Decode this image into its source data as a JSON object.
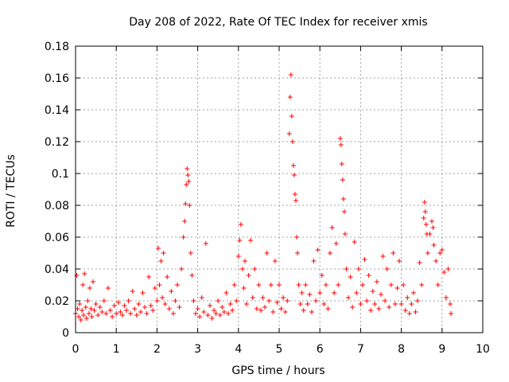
{
  "chart_data": {
    "type": "scatter",
    "title": "Day 208 of 2022, Rate Of TEC Index for receiver xmis",
    "xlabel": "GPS time / hours",
    "ylabel": "ROTI / TECUs",
    "xlim": [
      0,
      10
    ],
    "ylim": [
      0,
      0.18
    ],
    "xticks": [
      "0",
      "1",
      "2",
      "3",
      "4",
      "5",
      "6",
      "7",
      "8",
      "9",
      "10"
    ],
    "yticks": [
      "0",
      "0.02",
      "0.04",
      "0.06",
      "0.08",
      "0.1",
      "0.12",
      "0.14",
      "0.16",
      "0.18"
    ],
    "grid": true,
    "marker": "plus",
    "color": "#ff0000",
    "series": [
      {
        "points": [
          [
            0.0,
            0.012
          ],
          [
            0.03,
            0.036
          ],
          [
            0.05,
            0.015
          ],
          [
            0.08,
            0.01
          ],
          [
            0.1,
            0.018
          ],
          [
            0.13,
            0.008
          ],
          [
            0.16,
            0.014
          ],
          [
            0.18,
            0.03
          ],
          [
            0.2,
            0.011
          ],
          [
            0.22,
            0.037
          ],
          [
            0.25,
            0.016
          ],
          [
            0.27,
            0.009
          ],
          [
            0.3,
            0.02
          ],
          [
            0.33,
            0.012
          ],
          [
            0.35,
            0.028
          ],
          [
            0.38,
            0.015
          ],
          [
            0.4,
            0.01
          ],
          [
            0.43,
            0.032
          ],
          [
            0.46,
            0.014
          ],
          [
            0.5,
            0.018
          ],
          [
            0.55,
            0.011
          ],
          [
            0.6,
            0.016
          ],
          [
            0.65,
            0.013
          ],
          [
            0.7,
            0.02
          ],
          [
            0.75,
            0.012
          ],
          [
            0.8,
            0.028
          ],
          [
            0.85,
            0.014
          ],
          [
            0.9,
            0.01
          ],
          [
            0.95,
            0.017
          ],
          [
            1.0,
            0.012
          ],
          [
            1.05,
            0.019
          ],
          [
            1.1,
            0.013
          ],
          [
            1.15,
            0.011
          ],
          [
            1.2,
            0.017
          ],
          [
            1.25,
            0.014
          ],
          [
            1.3,
            0.02
          ],
          [
            1.35,
            0.012
          ],
          [
            1.4,
            0.026
          ],
          [
            1.45,
            0.015
          ],
          [
            1.5,
            0.011
          ],
          [
            1.55,
            0.018
          ],
          [
            1.6,
            0.013
          ],
          [
            1.65,
            0.025
          ],
          [
            1.7,
            0.016
          ],
          [
            1.75,
            0.012
          ],
          [
            1.8,
            0.035
          ],
          [
            1.85,
            0.017
          ],
          [
            1.9,
            0.014
          ],
          [
            1.95,
            0.028
          ],
          [
            2.0,
            0.02
          ],
          [
            2.03,
            0.053
          ],
          [
            2.06,
            0.03
          ],
          [
            2.1,
            0.045
          ],
          [
            2.13,
            0.022
          ],
          [
            2.16,
            0.05
          ],
          [
            2.2,
            0.018
          ],
          [
            2.25,
            0.035
          ],
          [
            2.3,
            0.015
          ],
          [
            2.35,
            0.026
          ],
          [
            2.4,
            0.012
          ],
          [
            2.45,
            0.02
          ],
          [
            2.5,
            0.03
          ],
          [
            2.55,
            0.016
          ],
          [
            2.6,
            0.04
          ],
          [
            2.65,
            0.06
          ],
          [
            2.68,
            0.07
          ],
          [
            2.7,
            0.081
          ],
          [
            2.72,
            0.093
          ],
          [
            2.74,
            0.103
          ],
          [
            2.76,
            0.099
          ],
          [
            2.78,
            0.095
          ],
          [
            2.8,
            0.08
          ],
          [
            2.83,
            0.05
          ],
          [
            2.86,
            0.036
          ],
          [
            2.9,
            0.02
          ],
          [
            2.95,
            0.012
          ],
          [
            3.0,
            0.015
          ],
          [
            3.05,
            0.01
          ],
          [
            3.1,
            0.022
          ],
          [
            3.15,
            0.013
          ],
          [
            3.2,
            0.056
          ],
          [
            3.25,
            0.011
          ],
          [
            3.3,
            0.017
          ],
          [
            3.35,
            0.009
          ],
          [
            3.4,
            0.014
          ],
          [
            3.45,
            0.012
          ],
          [
            3.5,
            0.02
          ],
          [
            3.55,
            0.011
          ],
          [
            3.6,
            0.016
          ],
          [
            3.65,
            0.013
          ],
          [
            3.7,
            0.025
          ],
          [
            3.75,
            0.012
          ],
          [
            3.8,
            0.018
          ],
          [
            3.85,
            0.014
          ],
          [
            3.9,
            0.03
          ],
          [
            3.95,
            0.02
          ],
          [
            4.0,
            0.048
          ],
          [
            4.03,
            0.058
          ],
          [
            4.06,
            0.068
          ],
          [
            4.1,
            0.04
          ],
          [
            4.13,
            0.028
          ],
          [
            4.16,
            0.045
          ],
          [
            4.2,
            0.018
          ],
          [
            4.25,
            0.036
          ],
          [
            4.3,
            0.058
          ],
          [
            4.35,
            0.022
          ],
          [
            4.4,
            0.04
          ],
          [
            4.45,
            0.015
          ],
          [
            4.5,
            0.03
          ],
          [
            4.55,
            0.014
          ],
          [
            4.6,
            0.022
          ],
          [
            4.65,
            0.016
          ],
          [
            4.7,
            0.05
          ],
          [
            4.75,
            0.02
          ],
          [
            4.8,
            0.03
          ],
          [
            4.85,
            0.013
          ],
          [
            4.9,
            0.045
          ],
          [
            4.95,
            0.019
          ],
          [
            5.0,
            0.03
          ],
          [
            5.05,
            0.015
          ],
          [
            5.1,
            0.022
          ],
          [
            5.15,
            0.013
          ],
          [
            5.2,
            0.02
          ],
          [
            5.25,
            0.125
          ],
          [
            5.27,
            0.148
          ],
          [
            5.29,
            0.162
          ],
          [
            5.31,
            0.136
          ],
          [
            5.33,
            0.12
          ],
          [
            5.35,
            0.105
          ],
          [
            5.37,
            0.099
          ],
          [
            5.39,
            0.087
          ],
          [
            5.41,
            0.083
          ],
          [
            5.43,
            0.06
          ],
          [
            5.45,
            0.05
          ],
          [
            5.48,
            0.03
          ],
          [
            5.52,
            0.018
          ],
          [
            5.56,
            0.025
          ],
          [
            5.6,
            0.014
          ],
          [
            5.65,
            0.03
          ],
          [
            5.7,
            0.018
          ],
          [
            5.75,
            0.024
          ],
          [
            5.8,
            0.013
          ],
          [
            5.85,
            0.045
          ],
          [
            5.9,
            0.02
          ],
          [
            5.95,
            0.052
          ],
          [
            6.0,
            0.025
          ],
          [
            6.05,
            0.036
          ],
          [
            6.1,
            0.018
          ],
          [
            6.15,
            0.03
          ],
          [
            6.2,
            0.015
          ],
          [
            6.25,
            0.05
          ],
          [
            6.3,
            0.066
          ],
          [
            6.35,
            0.025
          ],
          [
            6.4,
            0.056
          ],
          [
            6.45,
            0.03
          ],
          [
            6.5,
            0.122
          ],
          [
            6.52,
            0.118
          ],
          [
            6.54,
            0.106
          ],
          [
            6.56,
            0.096
          ],
          [
            6.58,
            0.084
          ],
          [
            6.6,
            0.076
          ],
          [
            6.62,
            0.062
          ],
          [
            6.65,
            0.04
          ],
          [
            6.7,
            0.022
          ],
          [
            6.75,
            0.035
          ],
          [
            6.8,
            0.016
          ],
          [
            6.85,
            0.057
          ],
          [
            6.9,
            0.025
          ],
          [
            6.95,
            0.04
          ],
          [
            7.0,
            0.018
          ],
          [
            7.05,
            0.03
          ],
          [
            7.1,
            0.046
          ],
          [
            7.15,
            0.02
          ],
          [
            7.2,
            0.036
          ],
          [
            7.25,
            0.014
          ],
          [
            7.3,
            0.026
          ],
          [
            7.35,
            0.018
          ],
          [
            7.4,
            0.032
          ],
          [
            7.45,
            0.015
          ],
          [
            7.5,
            0.024
          ],
          [
            7.55,
            0.048
          ],
          [
            7.6,
            0.02
          ],
          [
            7.65,
            0.04
          ],
          [
            7.7,
            0.016
          ],
          [
            7.75,
            0.03
          ],
          [
            7.8,
            0.05
          ],
          [
            7.85,
            0.018
          ],
          [
            7.9,
            0.028
          ],
          [
            7.95,
            0.045
          ],
          [
            8.0,
            0.018
          ],
          [
            8.05,
            0.03
          ],
          [
            8.1,
            0.014
          ],
          [
            8.15,
            0.022
          ],
          [
            8.2,
            0.012
          ],
          [
            8.25,
            0.018
          ],
          [
            8.3,
            0.025
          ],
          [
            8.35,
            0.013
          ],
          [
            8.4,
            0.02
          ],
          [
            8.45,
            0.044
          ],
          [
            8.5,
            0.03
          ],
          [
            8.55,
            0.072
          ],
          [
            8.57,
            0.082
          ],
          [
            8.59,
            0.076
          ],
          [
            8.61,
            0.068
          ],
          [
            8.63,
            0.062
          ],
          [
            8.65,
            0.05
          ],
          [
            8.7,
            0.062
          ],
          [
            8.75,
            0.07
          ],
          [
            8.78,
            0.066
          ],
          [
            8.8,
            0.055
          ],
          [
            8.85,
            0.045
          ],
          [
            8.9,
            0.03
          ],
          [
            8.95,
            0.05
          ],
          [
            9.0,
            0.052
          ],
          [
            9.05,
            0.038
          ],
          [
            9.1,
            0.022
          ],
          [
            9.15,
            0.04
          ],
          [
            9.2,
            0.018
          ],
          [
            9.22,
            0.012
          ]
        ]
      }
    ]
  }
}
